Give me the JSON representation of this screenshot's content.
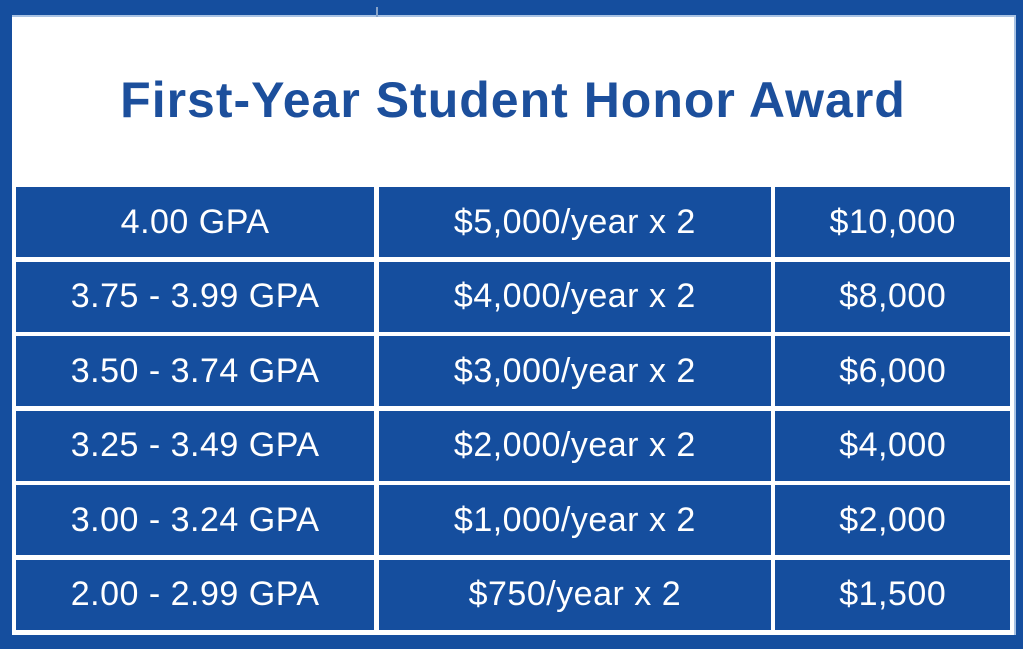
{
  "title": "First-Year Student Honor Award",
  "table": {
    "rows": [
      {
        "gpa": "4.00 GPA",
        "per_year": "$5,000/year x 2",
        "total": "$10,000"
      },
      {
        "gpa": "3.75 - 3.99 GPA",
        "per_year": "$4,000/year x 2",
        "total": "$8,000"
      },
      {
        "gpa": "3.50 - 3.74 GPA",
        "per_year": "$3,000/year x 2",
        "total": "$6,000"
      },
      {
        "gpa": "3.25 - 3.49 GPA",
        "per_year": "$2,000/year x 2",
        "total": "$4,000"
      },
      {
        "gpa": "3.00 - 3.24 GPA",
        "per_year": "$1,000/year x 2",
        "total": "$2,000"
      },
      {
        "gpa": "2.00 - 2.99 GPA",
        "per_year": "$750/year x 2",
        "total": "$1,500"
      }
    ]
  },
  "colors": {
    "brand_blue": "#154E9E",
    "title_blue": "#1C4F9C",
    "gridline_white": "#FFFFFF",
    "accent_light_blue": "#A8C2E3",
    "tick_gray_blue": "#87A3C9"
  }
}
